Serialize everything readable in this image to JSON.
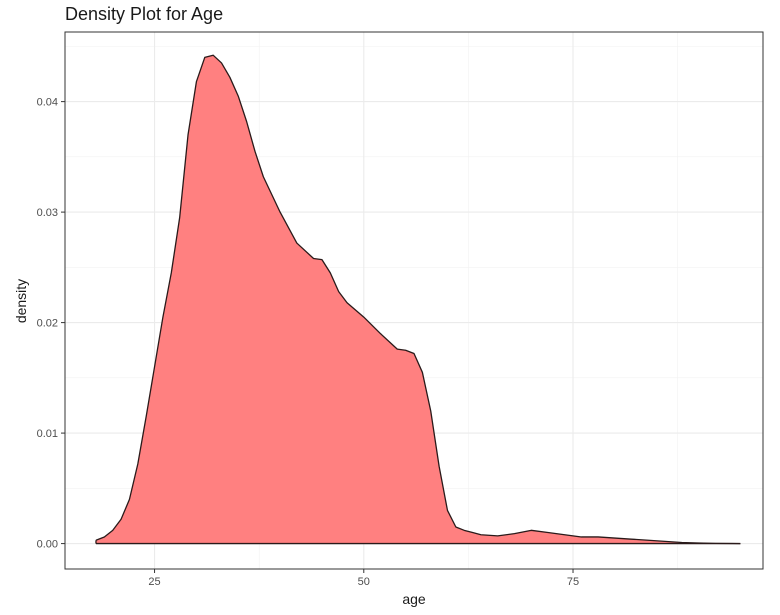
{
  "chart_data": {
    "type": "area",
    "title": "Density Plot for Age",
    "xlabel": "age",
    "ylabel": "density",
    "xlim": [
      14.3,
      97.7
    ],
    "ylim": [
      -0.0023,
      0.0463
    ],
    "xticks": [
      25,
      50,
      75
    ],
    "yticks": [
      0.0,
      0.01,
      0.02,
      0.03,
      0.04
    ],
    "xtick_labels": [
      "25",
      "50",
      "75"
    ],
    "ytick_labels": [
      "0.00",
      "0.01",
      "0.02",
      "0.03",
      "0.04"
    ],
    "grid": true,
    "fill_color": "#ff8080",
    "line_color": "#2a1a1a",
    "series": [
      {
        "x": [
          18,
          19,
          20,
          21,
          22,
          23,
          24,
          25,
          26,
          27,
          28,
          29,
          30,
          31,
          32,
          33,
          34,
          35,
          36,
          37,
          38,
          40,
          42,
          44,
          45,
          46,
          47,
          48,
          50,
          52,
          54,
          55,
          56,
          57,
          58,
          59,
          60,
          61,
          62,
          63,
          64,
          66,
          68,
          70,
          72,
          74,
          76,
          78,
          80,
          82,
          84,
          86,
          88,
          90,
          92,
          94,
          95
        ],
        "y": [
          0.0003,
          0.0006,
          0.0012,
          0.0022,
          0.004,
          0.0072,
          0.0115,
          0.016,
          0.0205,
          0.0245,
          0.0295,
          0.037,
          0.0418,
          0.044,
          0.0442,
          0.0435,
          0.0422,
          0.0405,
          0.0382,
          0.0355,
          0.0332,
          0.03,
          0.0272,
          0.0258,
          0.0257,
          0.0245,
          0.0228,
          0.0218,
          0.0205,
          0.019,
          0.0176,
          0.0175,
          0.0172,
          0.0155,
          0.012,
          0.007,
          0.003,
          0.0015,
          0.0012,
          0.001,
          0.0008,
          0.0007,
          0.0009,
          0.0012,
          0.001,
          0.0008,
          0.0006,
          0.0006,
          0.0005,
          0.0004,
          0.0003,
          0.0002,
          0.0001,
          5e-05,
          2e-05,
          1e-05,
          0.0
        ]
      }
    ]
  }
}
